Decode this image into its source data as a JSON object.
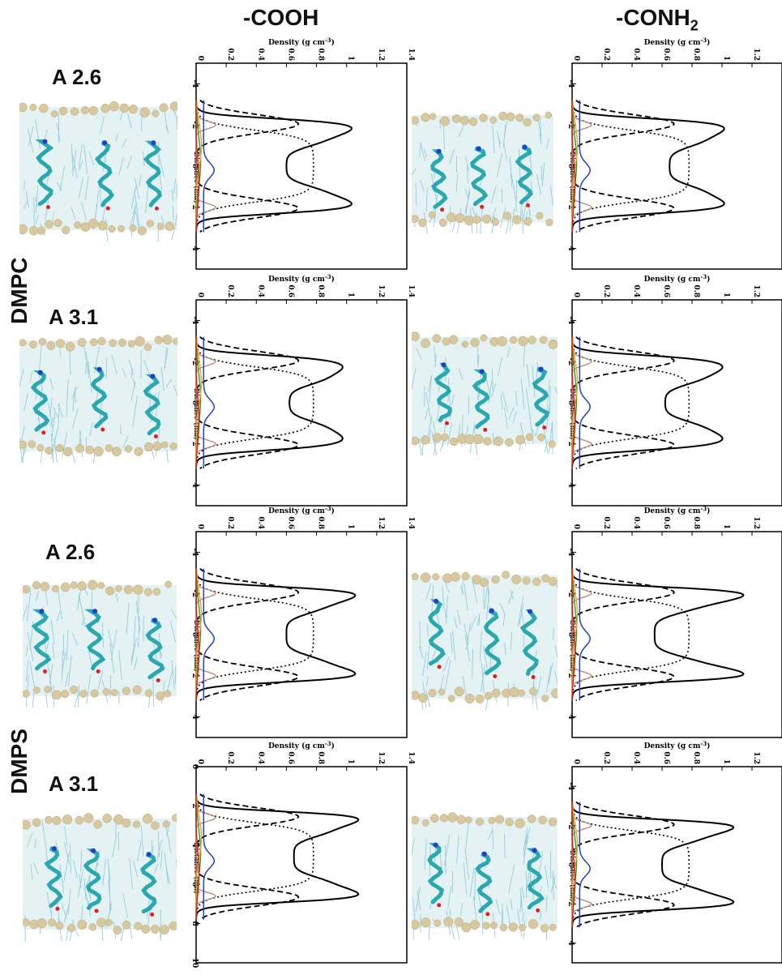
{
  "columns": [
    {
      "title": "-COOH"
    },
    {
      "title": "-CONH",
      "subscript": "2"
    }
  ],
  "groups": [
    {
      "label": "DMPC"
    },
    {
      "label": "DMPS"
    }
  ],
  "rows": [
    {
      "label": "A 2.6"
    },
    {
      "label": "A 3.1"
    },
    {
      "label": "A 2.6"
    },
    {
      "label": "A 3.1"
    }
  ],
  "axis": {
    "density_label": "Density (g cm",
    "density_exp": "-3",
    "distance_label": "Distance (nm)",
    "density_ticks": [
      "0",
      "0.2",
      "0.4",
      "0.6",
      "0.8",
      "1",
      "1.2",
      "1.4"
    ]
  },
  "colors": {
    "total": "#000000",
    "dashed": "#000000",
    "dotted": "#000000",
    "head": "#c08a7a",
    "blue": "#1f3fd0",
    "green": "#2aa02a",
    "orange": "#f0a020",
    "red": "#e02020",
    "water": "#8cc8d4",
    "bead": "#d8c8a0",
    "helix": "#2aa8b0"
  },
  "chart_data": [
    {
      "type": "line",
      "panel": "DMPC A 2.6 -COOH",
      "ylabel": "Distance (nm)",
      "xlabel": "Density (g cm-3)",
      "xlim": [
        0,
        1.4
      ],
      "ylim": [
        -5,
        5
      ],
      "yticks": [
        "-4",
        "-2",
        "0",
        "2",
        "4"
      ],
      "ytick_values": [
        -4,
        -2,
        0,
        2,
        4
      ],
      "center": 0,
      "peak": 1.04,
      "mid": 0.6,
      "peak_z": 1.9
    },
    {
      "type": "line",
      "panel": "DMPC A 2.6 -CONH2",
      "ylabel": "Distance (nm)",
      "xlabel": "Density (g cm-3)",
      "xlim": [
        0,
        1.4
      ],
      "ylim": [
        -5,
        5
      ],
      "yticks": [
        "-4",
        "-2",
        "0",
        "2",
        "4"
      ],
      "ytick_values": [
        -4,
        -2,
        0,
        2,
        4
      ],
      "center": 0,
      "peak": 1.02,
      "mid": 0.65,
      "peak_z": 1.9
    },
    {
      "type": "line",
      "panel": "DMPC A 3.1 -COOH",
      "ylabel": "Distance (nm)",
      "xlabel": "Density (g cm-3)",
      "xlim": [
        0,
        1.4
      ],
      "ylim": [
        -5,
        5
      ],
      "yticks": [
        "-4",
        "-2",
        "0",
        "2",
        "4"
      ],
      "ytick_values": [
        -4,
        -2,
        0,
        2,
        4
      ],
      "center": 0,
      "peak": 0.97,
      "mid": 0.62,
      "peak_z": 1.8
    },
    {
      "type": "line",
      "panel": "DMPC A 3.1 -CONH2",
      "ylabel": "Distance (nm)",
      "xlabel": "Density (g cm-3)",
      "xlim": [
        0,
        1.4
      ],
      "ylim": [
        -5,
        5
      ],
      "yticks": [
        "-4",
        "-2",
        "0",
        "2",
        "4"
      ],
      "ytick_values": [
        -4,
        -2,
        0,
        2,
        4
      ],
      "center": 0,
      "peak": 1.0,
      "mid": 0.62,
      "peak_z": 1.8
    },
    {
      "type": "line",
      "panel": "DMPS A 2.6 -COOH",
      "ylabel": "Distance (nm)",
      "xlabel": "Density (g cm-3)",
      "xlim": [
        0,
        1.4
      ],
      "ylim": [
        -5,
        5
      ],
      "yticks": [
        "-4",
        "-2",
        "0",
        "2",
        "4"
      ],
      "ytick_values": [
        -4,
        -2,
        0,
        2,
        4
      ],
      "center": 0,
      "peak": 1.08,
      "mid": 0.6,
      "peak_z": 2.0
    },
    {
      "type": "line",
      "panel": "DMPS A 2.6 -CONH2",
      "ylabel": "Distance (nm)",
      "xlabel": "Density (g cm-3)",
      "xlim": [
        0,
        1.4
      ],
      "ylim": [
        -5,
        5
      ],
      "yticks": [
        "-4",
        "-2",
        "0",
        "2",
        "4"
      ],
      "ytick_values": [
        -4,
        -2,
        0,
        2,
        4
      ],
      "center": 0,
      "peak": 1.17,
      "mid": 0.55,
      "peak_z": 2.0
    },
    {
      "type": "line",
      "panel": "DMPS A 3.1 -COOH",
      "ylabel": "Distance (nm)",
      "xlabel": "Density (g cm-3)",
      "xlim": [
        0,
        1.4
      ],
      "ylim": [
        0,
        10
      ],
      "yticks": [
        "0",
        "2",
        "4",
        "6",
        "8",
        "10"
      ],
      "ytick_values": [
        0,
        2,
        4,
        6,
        8,
        10
      ],
      "center": 4.6,
      "peak": 1.1,
      "mid": 0.65,
      "peak_z": 2.0
    },
    {
      "type": "line",
      "panel": "DMPS A 3.1 -CONH2",
      "ylabel": "Distance (nm)",
      "xlabel": "Density (g cm-3)",
      "xlim": [
        0,
        1.4
      ],
      "ylim": [
        -5,
        5
      ],
      "yticks": [
        "-4",
        "-2",
        "0",
        "2",
        "4"
      ],
      "ytick_values": [
        -4,
        -2,
        0,
        2,
        4
      ],
      "center": 0,
      "peak": 1.1,
      "mid": 0.6,
      "peak_z": 2.0
    }
  ]
}
